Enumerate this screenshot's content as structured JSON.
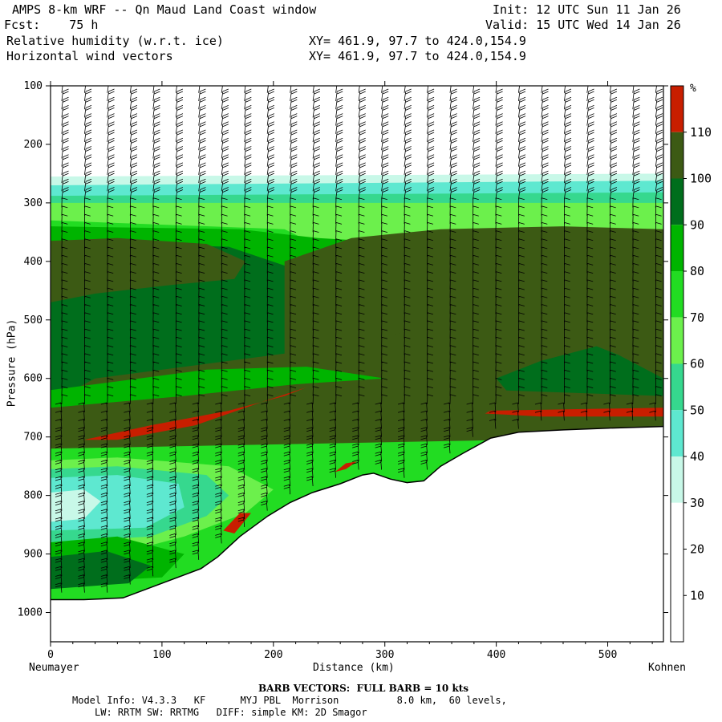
{
  "header": {
    "title": "AMPS 8-km WRF -- Qn Maud Land Coast window",
    "init": "Init: 12 UTC Sun 11 Jan 26",
    "fcst": "Fcst:    75 h",
    "valid": "Valid: 15 UTC Wed 14 Jan 26",
    "field1": "Relative humidity (w.r.t. ice)",
    "xy1": "XY= 461.9, 97.7 to 424.0,154.9",
    "field2": "Horizontal wind vectors",
    "xy2": "XY= 461.9, 97.7 to 424.0,154.9"
  },
  "footer": {
    "barb": "BARB VECTORS:  FULL BARB = 10 kts",
    "model1": "Model Info: V4.3.3   KF      MYJ PBL  Morrison          8.0 km,  60 levels,",
    "model2": "LW: RRTM SW: RRTMG   DIFF: simple KM: 2D Smagor"
  },
  "chart_data": {
    "type": "heatmap",
    "xlabel": "Distance (km)",
    "ylabel": "Pressure (hPa)",
    "x_start_label": "Neumayer",
    "x_end_label": "Kohnen",
    "xlim": [
      0,
      550
    ],
    "ylim": [
      1050,
      100
    ],
    "x_ticks": [
      0,
      100,
      200,
      300,
      400,
      500
    ],
    "y_ticks": [
      100,
      200,
      300,
      400,
      500,
      600,
      700,
      800,
      900,
      1000
    ],
    "colorbar": {
      "unit": "%",
      "levels": [
        10,
        20,
        30,
        40,
        50,
        60,
        70,
        80,
        90,
        100,
        110
      ],
      "colors": [
        "#ffffff",
        "#ffffff",
        "#ffffff",
        "#c8f8e8",
        "#5ee8d0",
        "#36d88e",
        "#6cf04c",
        "#22dc22",
        "#00b400",
        "#006e1c",
        "#3c5a14",
        "#c81e00"
      ]
    },
    "terrain": [
      [
        0,
        978
      ],
      [
        30,
        978
      ],
      [
        65,
        975
      ],
      [
        100,
        950
      ],
      [
        135,
        925
      ],
      [
        150,
        905
      ],
      [
        170,
        870
      ],
      [
        195,
        835
      ],
      [
        215,
        812
      ],
      [
        235,
        795
      ],
      [
        260,
        780
      ],
      [
        280,
        765
      ],
      [
        290,
        762
      ],
      [
        305,
        772
      ],
      [
        320,
        778
      ],
      [
        335,
        775
      ],
      [
        350,
        750
      ],
      [
        370,
        728
      ],
      [
        395,
        702
      ],
      [
        420,
        692
      ],
      [
        460,
        688
      ],
      [
        500,
        685
      ],
      [
        550,
        682
      ]
    ],
    "moist_top_hpa": 290,
    "dry_above_top": true,
    "high_rh_patches": [
      {
        "value": 112,
        "region": "620-700 hPa, 30-215 km"
      },
      {
        "value": 112,
        "region": "645-670 hPa, 390-550 km"
      },
      {
        "value": 112,
        "region": "730-760 hPa, 255-275 km"
      }
    ],
    "low_rh_patch": {
      "value": 45,
      "region": "760-880 hPa, 0-120 km"
    }
  }
}
